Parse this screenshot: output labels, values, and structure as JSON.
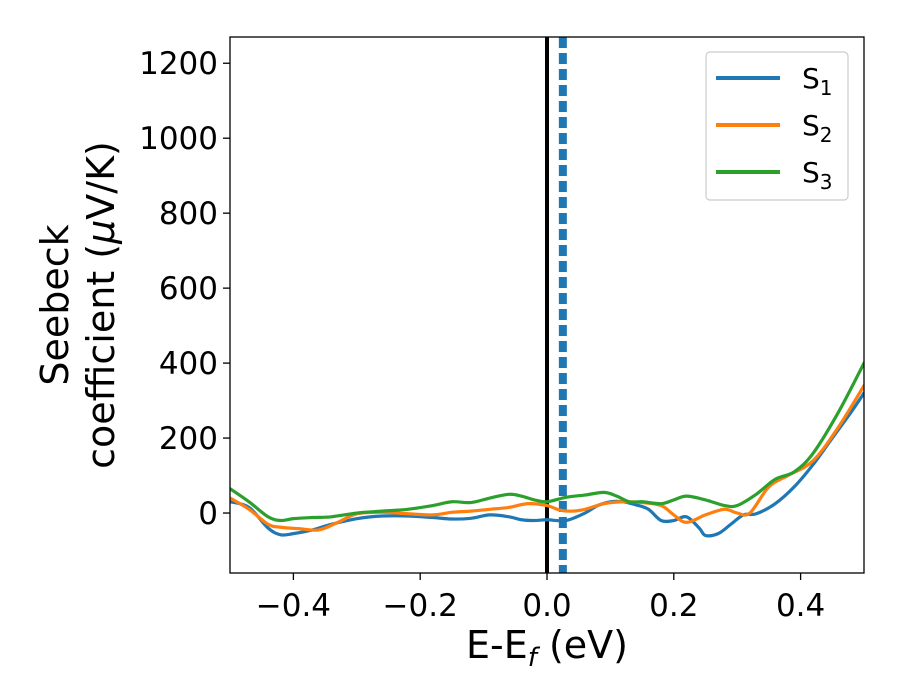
{
  "chart_data": {
    "type": "line",
    "xlabel": "E-E",
    "xlabel_sub": "f",
    "xlabel_unit": " (eV)",
    "ylabel_line1": "Seebeck",
    "ylabel_line2": "coefficient  (",
    "ylabel_mu": "μ",
    "ylabel_unit": "V/K)",
    "xlim": [
      -0.5,
      0.5
    ],
    "ylim": [
      -160,
      1270
    ],
    "xticks": [
      -0.4,
      -0.2,
      0.0,
      0.2,
      0.4
    ],
    "xtick_labels": [
      "−0.4",
      "−0.2",
      "0.0",
      "0.2",
      "0.4"
    ],
    "yticks": [
      0,
      200,
      400,
      600,
      800,
      1000,
      1200
    ],
    "ytick_labels": [
      "0",
      "200",
      "400",
      "600",
      "800",
      "1000",
      "1200"
    ],
    "legend_position": "top-right",
    "vertical_lines": [
      {
        "x": 0.0,
        "style": "solid",
        "color": "#000000"
      },
      {
        "x": 0.025,
        "style": "dashed",
        "color": "#1f77b4"
      }
    ],
    "series": [
      {
        "name": "S",
        "sub": "1",
        "color": "#1f77b4",
        "x": [
          -0.5,
          -0.47,
          -0.44,
          -0.42,
          -0.4,
          -0.37,
          -0.34,
          -0.3,
          -0.26,
          -0.22,
          -0.18,
          -0.15,
          -0.12,
          -0.09,
          -0.06,
          -0.04,
          -0.02,
          0.0,
          0.03,
          0.06,
          0.08,
          0.1,
          0.12,
          0.14,
          0.16,
          0.18,
          0.2,
          0.22,
          0.24,
          0.25,
          0.27,
          0.29,
          0.31,
          0.33,
          0.36,
          0.39,
          0.42,
          0.45,
          0.48,
          0.5
        ],
        "y": [
          30,
          15,
          -40,
          -58,
          -55,
          -45,
          -30,
          -15,
          -8,
          -8,
          -12,
          -16,
          -14,
          -5,
          -10,
          -18,
          -20,
          -18,
          -20,
          0,
          20,
          30,
          30,
          22,
          10,
          -20,
          -20,
          -10,
          -40,
          -60,
          -55,
          -30,
          -5,
          -2,
          25,
          70,
          130,
          200,
          270,
          320
        ]
      },
      {
        "name": "S",
        "sub": "2",
        "color": "#ff7f0e",
        "x": [
          -0.5,
          -0.47,
          -0.44,
          -0.42,
          -0.39,
          -0.36,
          -0.33,
          -0.3,
          -0.26,
          -0.22,
          -0.18,
          -0.15,
          -0.12,
          -0.09,
          -0.06,
          -0.03,
          0.0,
          0.02,
          0.04,
          0.06,
          0.09,
          0.12,
          0.15,
          0.18,
          0.2,
          0.22,
          0.25,
          0.28,
          0.3,
          0.32,
          0.35,
          0.38,
          0.42,
          0.46,
          0.5
        ],
        "y": [
          40,
          10,
          -30,
          -38,
          -42,
          -45,
          -25,
          -2,
          2,
          -2,
          -5,
          2,
          5,
          10,
          15,
          25,
          20,
          8,
          5,
          10,
          25,
          30,
          28,
          20,
          -5,
          -25,
          -5,
          10,
          0,
          0,
          70,
          100,
          140,
          230,
          340
        ]
      },
      {
        "name": "S",
        "sub": "3",
        "color": "#2ca02c",
        "x": [
          -0.5,
          -0.47,
          -0.44,
          -0.42,
          -0.4,
          -0.37,
          -0.34,
          -0.3,
          -0.26,
          -0.22,
          -0.18,
          -0.15,
          -0.12,
          -0.09,
          -0.06,
          -0.04,
          -0.02,
          0.0,
          0.03,
          0.06,
          0.09,
          0.11,
          0.13,
          0.15,
          0.18,
          0.2,
          0.22,
          0.25,
          0.28,
          0.3,
          0.33,
          0.36,
          0.39,
          0.42,
          0.46,
          0.5
        ],
        "y": [
          65,
          30,
          -10,
          -20,
          -15,
          -12,
          -10,
          0,
          5,
          10,
          20,
          30,
          28,
          40,
          50,
          45,
          35,
          30,
          42,
          48,
          55,
          45,
          30,
          30,
          25,
          35,
          45,
          35,
          20,
          20,
          50,
          90,
          110,
          160,
          270,
          400
        ]
      }
    ]
  }
}
